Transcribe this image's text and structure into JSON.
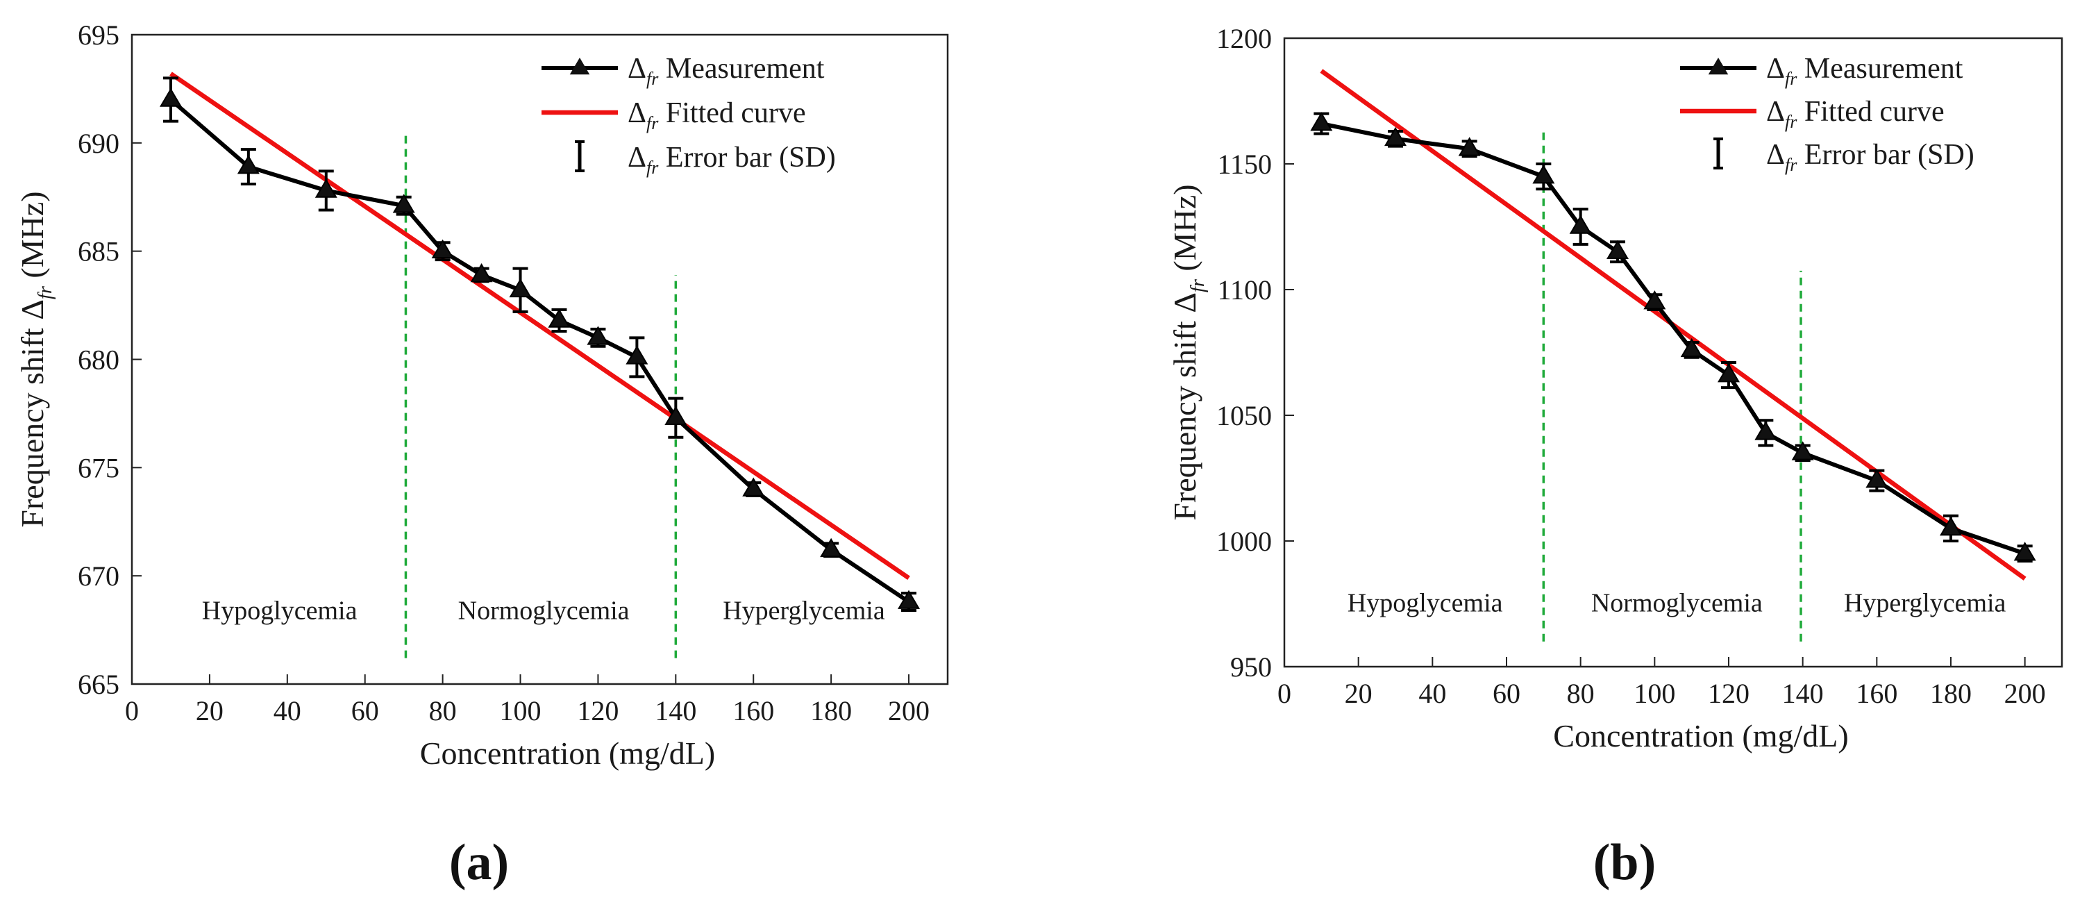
{
  "colors": {
    "measurement": "#000000",
    "fit": "#ee1111",
    "divider": "#1faa3a",
    "axis": "#222222"
  },
  "charts": [
    {
      "label": "(a)",
      "chart_data": {
        "type": "line",
        "xlabel": "Concentration (mg/dL)",
        "ylabel_prefix": "Frequency shift ",
        "ylabel_symbol": "Δ",
        "ylabel_sub": "fr",
        "ylabel_unit": " (MHz)",
        "xlim": [
          0,
          210
        ],
        "ylim": [
          665,
          695
        ],
        "xticks": [
          0,
          20,
          40,
          60,
          80,
          100,
          120,
          140,
          160,
          180,
          200
        ],
        "yticks": [
          665,
          670,
          675,
          680,
          685,
          690,
          695
        ],
        "series": [
          {
            "name": "Measurement",
            "x": [
              10,
              30,
              50,
              70,
              80,
              90,
              100,
              110,
              120,
              130,
              140,
              160,
              180,
              200
            ],
            "y": [
              692,
              688.9,
              687.8,
              687.1,
              685,
              683.9,
              683.2,
              681.8,
              681,
              680.1,
              677.3,
              674,
              671.2,
              668.8
            ],
            "err": [
              1,
              0.8,
              0.9,
              0.4,
              0.4,
              0.3,
              1,
              0.5,
              0.4,
              0.9,
              0.9,
              0.3,
              0.3,
              0.4
            ]
          },
          {
            "name": "Fitted curve",
            "x": [
              10,
              200
            ],
            "y": [
              693.2,
              669.9
            ]
          }
        ],
        "legend": [
          {
            "symbol": "Δ",
            "sub": "fr",
            "text": "Measurement"
          },
          {
            "symbol": "Δ",
            "sub": "fr",
            "text": "Fitted curve"
          },
          {
            "symbol": "Δ",
            "sub": "fr",
            "text": "Error bar (SD)"
          }
        ],
        "dividers": [
          70.5,
          140
        ],
        "regions": [
          {
            "text": "Hypoglycemia",
            "x": 38
          },
          {
            "text": "Normoglycemia",
            "x": 106
          },
          {
            "text": "Hyperglycemia",
            "x": 173
          }
        ],
        "region_y": 668
      }
    },
    {
      "label": "(b)",
      "chart_data": {
        "type": "line",
        "xlabel": "Concentration (mg/dL)",
        "ylabel_prefix": "Frequency shift ",
        "ylabel_symbol": "Δ",
        "ylabel_sub": "fr",
        "ylabel_unit": " (MHz)",
        "xlim": [
          0,
          210
        ],
        "ylim": [
          950,
          1200
        ],
        "xticks": [
          0,
          20,
          40,
          60,
          80,
          100,
          120,
          140,
          160,
          180,
          200
        ],
        "yticks": [
          950,
          1000,
          1050,
          1100,
          1150,
          1200
        ],
        "series": [
          {
            "name": "Measurement",
            "x": [
              10,
              30,
              50,
              70,
              80,
              90,
              100,
              110,
              120,
              130,
              140,
              160,
              180,
              200
            ],
            "y": [
              1166,
              1160,
              1156,
              1145,
              1125,
              1115,
              1095,
              1076,
              1066,
              1043,
              1035,
              1024,
              1005,
              995
            ],
            "err": [
              4,
              3,
              3,
              5,
              7,
              4,
              3,
              3,
              5,
              5,
              3,
              4,
              5,
              3
            ]
          },
          {
            "name": "Fitted curve",
            "x": [
              10,
              200
            ],
            "y": [
              1187,
              985
            ]
          }
        ],
        "legend": [
          {
            "symbol": "Δ",
            "sub": "fr",
            "text": "Measurement"
          },
          {
            "symbol": "Δ",
            "sub": "fr",
            "text": "Fitted curve"
          },
          {
            "symbol": "Δ",
            "sub": "fr",
            "text": "Error bar (SD)"
          }
        ],
        "dividers": [
          70,
          139.5
        ],
        "regions": [
          {
            "text": "Hypoglycemia",
            "x": 38
          },
          {
            "text": "Normoglycemia",
            "x": 106
          },
          {
            "text": "Hyperglycemia",
            "x": 173
          }
        ],
        "region_y": 972
      }
    }
  ]
}
